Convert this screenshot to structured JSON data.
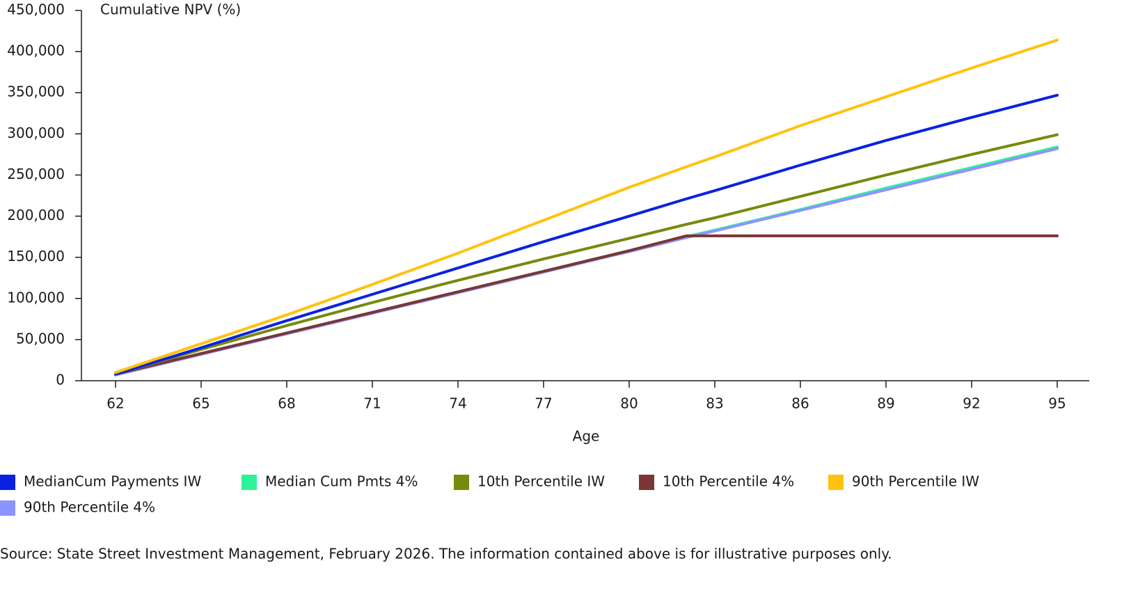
{
  "chart_data": {
    "type": "line",
    "y_axis_title": "Cumulative NPV (%)",
    "x_axis_title": "Age",
    "x": [
      62,
      65,
      68,
      71,
      74,
      77,
      80,
      82,
      83,
      86,
      89,
      92,
      95
    ],
    "xlim": [
      62,
      95
    ],
    "xticks": [
      62,
      65,
      68,
      71,
      74,
      77,
      80,
      83,
      86,
      89,
      92,
      95
    ],
    "ylim": [
      0,
      450000
    ],
    "yticks": [
      0,
      {
        "value": 50000,
        "label": "50,000"
      },
      {
        "value": 100000,
        "label": "100,000"
      },
      {
        "value": 150000,
        "label": "150,000"
      },
      {
        "value": 200000,
        "label": "200,000"
      },
      {
        "value": 250000,
        "label": "250,000"
      },
      {
        "value": 300000,
        "label": "300,000"
      },
      {
        "value": 350000,
        "label": "350,000"
      },
      {
        "value": 400000,
        "label": "400,000"
      },
      {
        "value": 450000,
        "label": "450,000"
      }
    ],
    "series": [
      {
        "name": "MedianCum Payments IW",
        "color": "#0a22e0",
        "values": [
          8000,
          40000,
          73000,
          105000,
          137000,
          169000,
          200000,
          221000,
          231000,
          262000,
          292000,
          320000,
          347000
        ]
      },
      {
        "name": "Median Cum Pmts 4%",
        "color": "#2ef29a",
        "values": [
          8000,
          33000,
          58000,
          83000,
          108000,
          133000,
          158000,
          175000,
          183000,
          208000,
          234000,
          259000,
          284000
        ]
      },
      {
        "name": "10th Percentile IW",
        "color": "#768a0c",
        "values": [
          8000,
          38000,
          67000,
          95000,
          122000,
          148000,
          173000,
          190000,
          198000,
          224000,
          250000,
          275000,
          299000
        ]
      },
      {
        "name": "10th Percentile 4%",
        "color": "#7a3535",
        "values": [
          8000,
          33000,
          58000,
          83000,
          108000,
          133000,
          158000,
          176000,
          176000,
          176000,
          176000,
          176000,
          176000
        ]
      },
      {
        "name": "90th Percentile IW",
        "color": "#ffc20e",
        "values": [
          10000,
          45000,
          80000,
          117000,
          155000,
          195000,
          235000,
          260000,
          272000,
          310000,
          345000,
          380000,
          414000
        ]
      },
      {
        "name": "90th Percentile 4%",
        "color": "#8c94ff",
        "values": [
          7000,
          32000,
          57000,
          82000,
          107000,
          132000,
          157000,
          174000,
          182000,
          207000,
          232000,
          257000,
          282000
        ]
      }
    ],
    "source": "Source: State Street Investment Management, February 2026. The information contained above is for illustrative purposes only."
  }
}
